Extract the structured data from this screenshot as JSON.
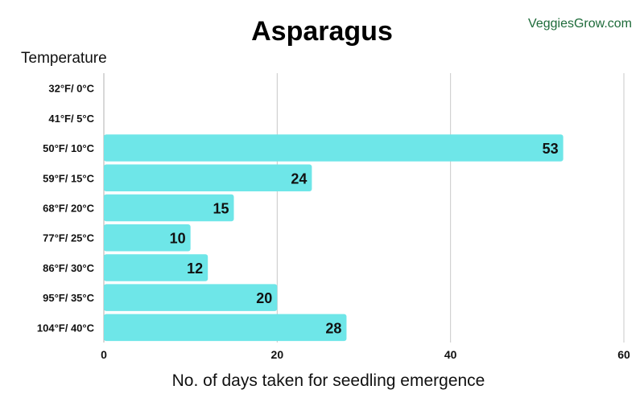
{
  "brand": {
    "watermark": "VeggiesGrow.com",
    "watermark_color": "#1e6b3a"
  },
  "chart_data": {
    "type": "bar",
    "orientation": "horizontal",
    "title": "Asparagus",
    "ylabel": "Temperature",
    "xlabel": "No. of days taken for seedling emergence",
    "categories": [
      "32°F/ 0°C",
      "41°F/ 5°C",
      "50°F/ 10°C",
      "59°F/ 15°C",
      "68°F/ 20°C",
      "77°F/ 25°C",
      "86°F/ 30°C",
      "95°F/ 35°C",
      "104°F/ 40°C"
    ],
    "values": [
      null,
      null,
      53,
      24,
      15,
      10,
      12,
      20,
      28
    ],
    "value_labels": [
      "",
      "",
      "53",
      "24",
      "15",
      "10",
      "12",
      "20",
      "28"
    ],
    "xlim": [
      0,
      60
    ],
    "xticks": [
      0,
      20,
      40,
      60
    ],
    "xtick_labels": [
      "0",
      "20",
      "40",
      "60"
    ],
    "grid": true,
    "bar_color": "#6ee6e8"
  }
}
